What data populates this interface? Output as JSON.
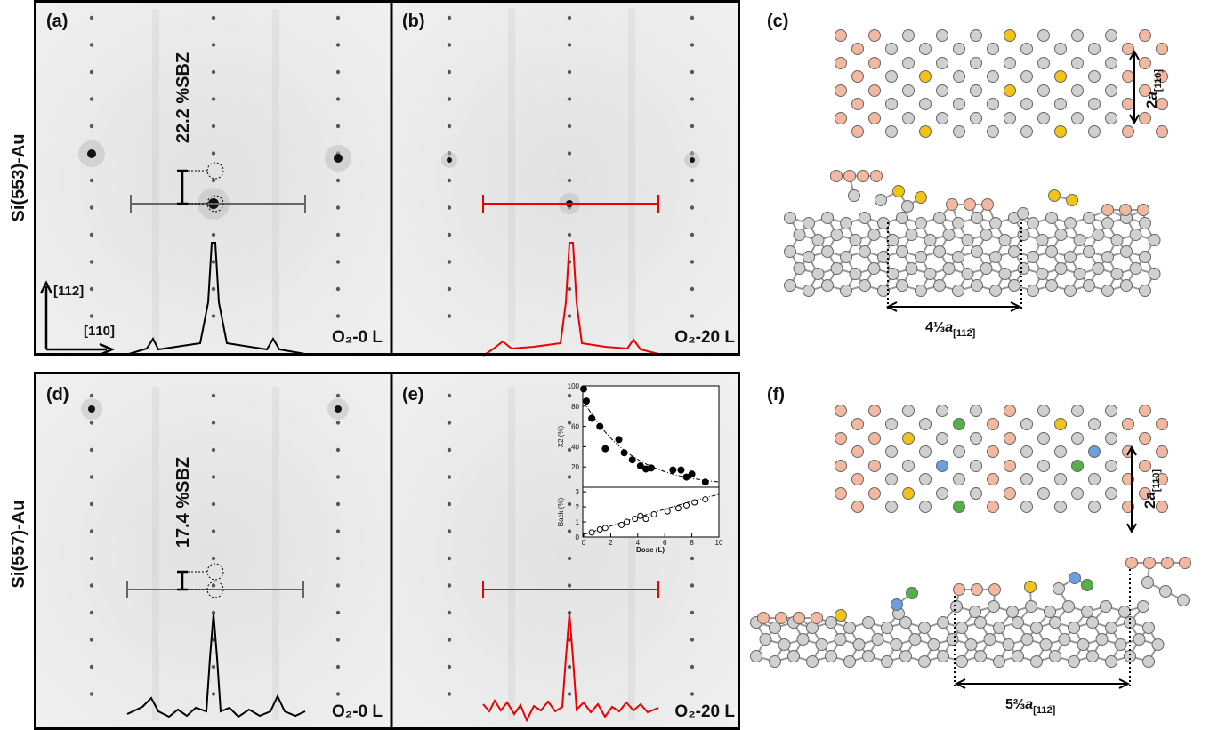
{
  "row_labels": [
    "Si(553)-Au",
    "Si(557)-Au"
  ],
  "panels": [
    {
      "label": "(a)",
      "sbz": "22.2 %SBZ",
      "dose": "O₂-0 L"
    },
    {
      "label": "(b)",
      "dose": "O₂-20 L"
    },
    {
      "label": "(d)",
      "sbz": "17.4 %SBZ",
      "dose": "O₂-0 L"
    },
    {
      "label": "(e)",
      "dose": "O₂-20 L"
    }
  ],
  "directions": {
    "vertical": "[112̅]",
    "horizontal": "[1̅10]"
  },
  "models": [
    {
      "label": "(c)",
      "period_vertical": {
        "prefix": "2",
        "symbol": "a",
        "sub": "[110]"
      },
      "period_horizontal": {
        "prefix": "4⅓",
        "symbol": "a",
        "sub": "[112̅]"
      }
    },
    {
      "label": "(f)",
      "period_vertical": {
        "prefix": "2",
        "symbol": "a",
        "sub": "[110]"
      },
      "period_horizontal": {
        "prefix": "5⅔",
        "symbol": "a",
        "sub": "[112̅]"
      }
    }
  ],
  "inset": {
    "type": "scatter",
    "x_label": "Dose (L)",
    "xlim": [
      0,
      10
    ],
    "xticks": [
      0,
      2,
      4,
      6,
      8,
      10
    ],
    "top": {
      "y_label": "X2 (%)",
      "ylim": [
        0,
        100
      ],
      "yticks": [
        20,
        40,
        60,
        80,
        100
      ],
      "dose": [
        0,
        0.2,
        0.6,
        1.2,
        1.6,
        2.6,
        3,
        3.6,
        4.2,
        4.6,
        5,
        6.6,
        7.2,
        7.6,
        8,
        9
      ],
      "values": [
        97,
        85,
        68,
        60,
        38,
        47,
        34,
        27,
        21,
        18,
        19,
        17,
        17,
        10,
        13,
        5
      ]
    },
    "bottom": {
      "y_label": "Back (%)",
      "ylim": [
        0,
        3.3
      ],
      "yticks": [
        0,
        1,
        2,
        3
      ],
      "dose": [
        0.6,
        1.2,
        1.6,
        2.8,
        3.2,
        3.8,
        4.2,
        4.6,
        5.2,
        6.2,
        7,
        7.6,
        8.2,
        9
      ],
      "values": [
        0.3,
        0.5,
        0.6,
        0.8,
        1.0,
        1.2,
        1.4,
        1.2,
        1.5,
        1.7,
        1.9,
        2.1,
        2.3,
        2.5
      ]
    }
  }
}
